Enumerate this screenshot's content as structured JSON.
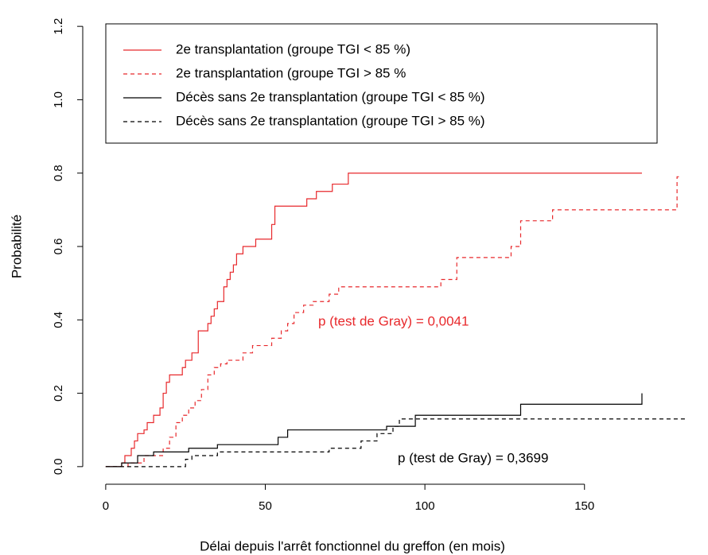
{
  "chart_data": {
    "type": "step",
    "x_label": "Délai depuis l'arrêt fonctionnel du greffon (en mois)",
    "y_label": "Probabilité",
    "xlim": [
      -7.2,
      187.2
    ],
    "ylim": [
      -0.048,
      1.248
    ],
    "xticks": [
      0,
      50,
      100,
      150
    ],
    "yticks": [
      {
        "value": 0,
        "label": "0.0"
      },
      0.2,
      0.4,
      0.6,
      0.8,
      {
        "value": 1,
        "label": "1.0"
      },
      1.2
    ],
    "legend": "top-left",
    "series": [
      {
        "name": "2e transplantation (groupe TGI < 85 %)",
        "color": "#e8292c",
        "dash": "solid",
        "x": [
          0,
          5,
          6,
          8,
          9,
          10,
          12,
          13,
          15,
          17,
          18,
          19,
          20,
          24,
          25,
          27,
          29,
          32,
          33,
          34,
          35,
          37,
          38,
          39,
          40,
          41,
          43,
          47,
          52,
          53,
          63,
          66,
          71,
          76,
          168
        ],
        "values": [
          0,
          0.01,
          0.03,
          0.05,
          0.07,
          0.09,
          0.1,
          0.12,
          0.14,
          0.16,
          0.2,
          0.23,
          0.25,
          0.27,
          0.29,
          0.31,
          0.37,
          0.39,
          0.41,
          0.43,
          0.45,
          0.49,
          0.51,
          0.53,
          0.55,
          0.58,
          0.6,
          0.62,
          0.66,
          0.71,
          0.73,
          0.75,
          0.77,
          0.8,
          0.8
        ]
      },
      {
        "name": "2e transplantation (groupe TGI > 85 %",
        "color": "#e8292c",
        "dash": "dashed",
        "x": [
          0,
          7,
          12,
          18,
          20,
          22,
          24,
          26,
          28,
          30,
          32,
          34,
          36,
          38,
          43,
          46,
          52,
          55,
          57,
          59,
          62,
          65,
          70,
          73,
          105,
          110,
          127,
          130,
          140,
          179,
          180
        ],
        "values": [
          0,
          0.01,
          0.03,
          0.05,
          0.08,
          0.12,
          0.14,
          0.16,
          0.18,
          0.21,
          0.25,
          0.27,
          0.28,
          0.29,
          0.31,
          0.33,
          0.35,
          0.37,
          0.39,
          0.42,
          0.44,
          0.45,
          0.47,
          0.49,
          0.51,
          0.57,
          0.6,
          0.67,
          0.7,
          0.79,
          0.79
        ]
      },
      {
        "name": "Décès sans 2e transplantation (groupe TGI < 85 %)",
        "color": "#000000",
        "dash": "solid",
        "x": [
          0,
          5,
          10,
          15,
          26,
          35,
          54,
          57,
          88,
          97,
          130,
          168
        ],
        "values": [
          0,
          0.01,
          0.03,
          0.04,
          0.05,
          0.06,
          0.08,
          0.1,
          0.11,
          0.14,
          0.17,
          0.2
        ]
      },
      {
        "name": "Décès sans 2e transplantation (groupe TGI > 85 %)",
        "color": "#000000",
        "dash": "dashed",
        "x": [
          0,
          25,
          27,
          35,
          70,
          80,
          85,
          90,
          92,
          182
        ],
        "values": [
          0,
          0.02,
          0.03,
          0.04,
          0.05,
          0.07,
          0.09,
          0.11,
          0.13,
          0.13
        ]
      }
    ],
    "annotations": [
      {
        "text": "p (test de Gray) = 0,0041",
        "color": "#e8292c"
      },
      {
        "text": "p (test de Gray) = 0,3699",
        "color": "#000000"
      }
    ]
  }
}
